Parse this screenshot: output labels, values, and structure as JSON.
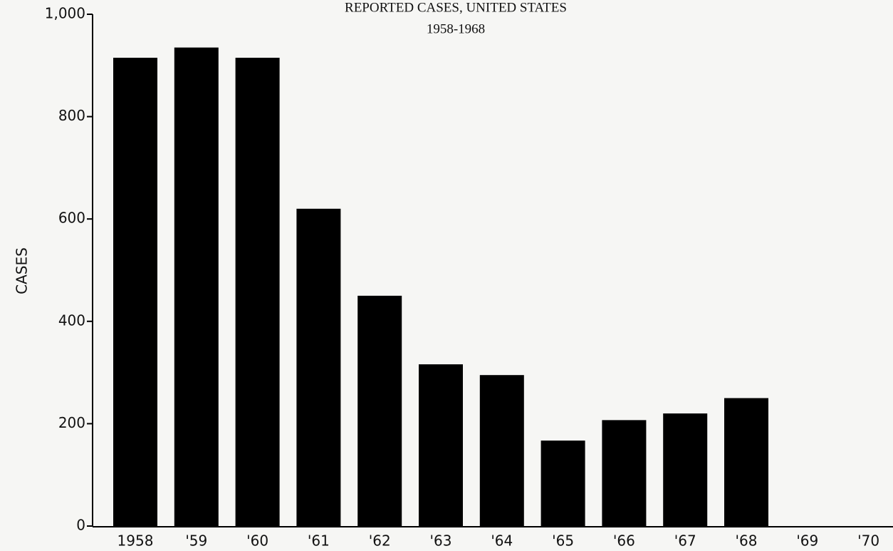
{
  "chart_data": {
    "type": "bar",
    "title": "REPORTED CASES, UNITED STATES",
    "subtitle": "1958-1968",
    "y_label": "CASES",
    "categories": [
      "1958",
      "'59",
      "'60",
      "'61",
      "'62",
      "'63",
      "'64",
      "'65",
      "'66",
      "'67",
      "'68",
      "'69",
      "'70"
    ],
    "values": [
      915,
      935,
      915,
      620,
      450,
      316,
      295,
      167,
      207,
      220,
      250,
      null,
      null
    ],
    "color": "#000000",
    "ylim": [
      0,
      1000
    ],
    "yticks": [
      0,
      200,
      400,
      600,
      800,
      {
        "value": 1000,
        "label": "1,000"
      }
    ],
    "grid": false
  }
}
